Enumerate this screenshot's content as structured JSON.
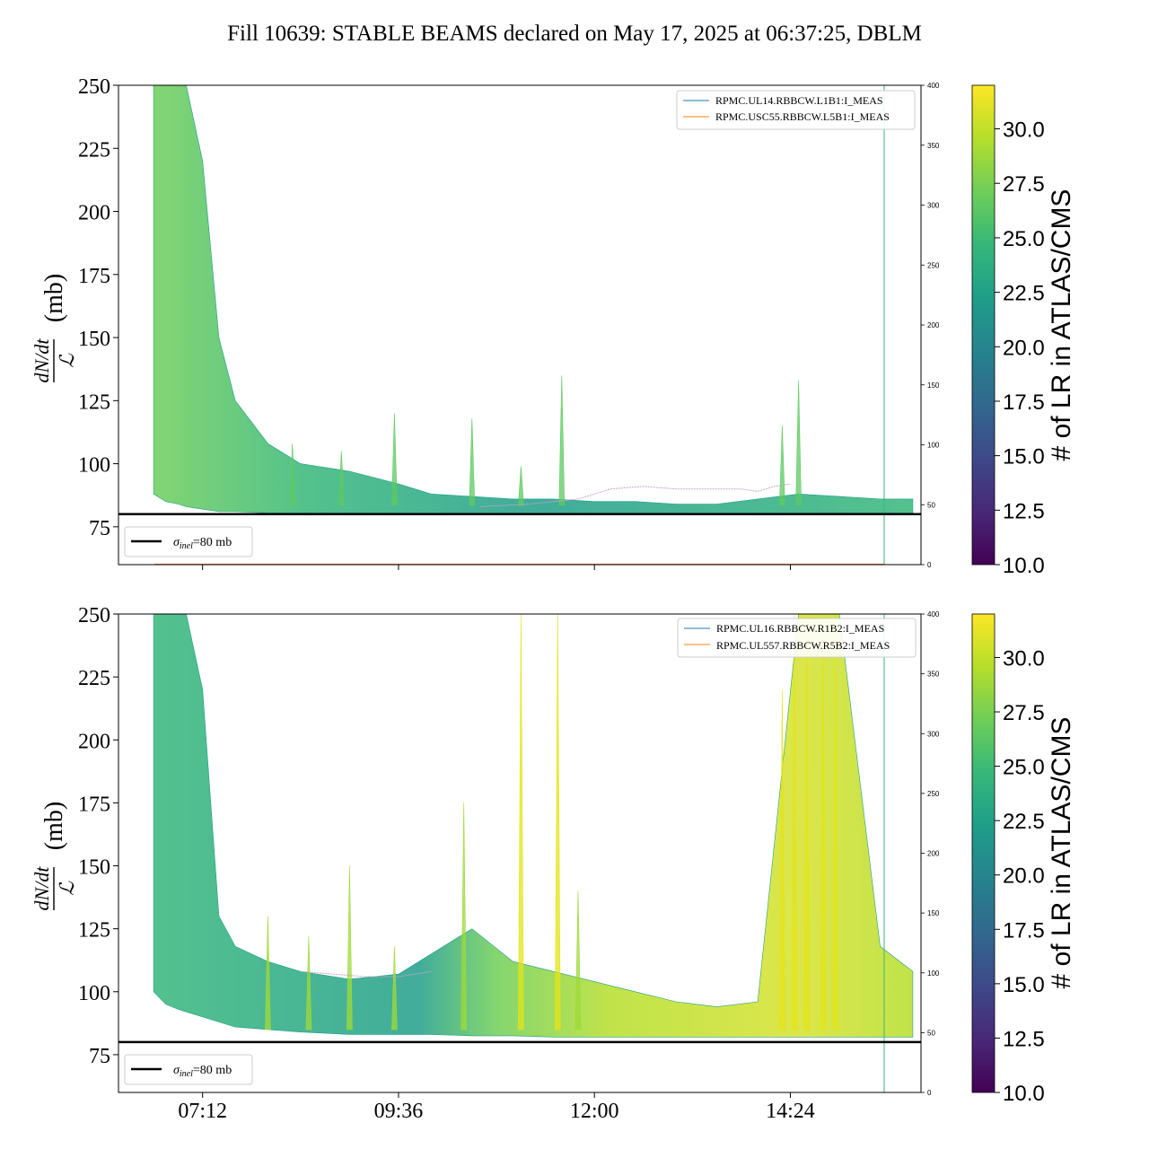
{
  "figure": {
    "title": "Fill 10639: STABLE BEAMS declared on May 17, 2025 at 06:37:25, DBLM",
    "ylabel_numerator": "dN/dt",
    "ylabel_denominator": "ℒ",
    "ylabel_unit": "(mb)",
    "colorbar_label": "# of LR in ATLAS/CMS",
    "sigma_label_symbol": "σ",
    "sigma_label_sub": "inel",
    "sigma_label_value": "=80 mb"
  },
  "chart_data": [
    {
      "type": "line",
      "panel": "top",
      "x_ticks": [
        "07:12",
        "09:36",
        "12:00",
        "14:24"
      ],
      "x_tick_values_hours": [
        7.2,
        9.6,
        12.0,
        14.4
      ],
      "xlim_hours": [
        6.17,
        16.0
      ],
      "y_ticks": [
        "75",
        "100",
        "125",
        "150",
        "175",
        "200",
        "225",
        "250"
      ],
      "ylim": [
        60,
        250
      ],
      "y2_ticks": [
        "0",
        "50",
        "100",
        "150",
        "200",
        "250",
        "300",
        "350",
        "400"
      ],
      "y2lim": [
        0,
        400
      ],
      "hline": {
        "y": 80,
        "label": "σinel=80 mb"
      },
      "legend": [
        "RPMC.UL14.RBBCW.L1B1:I_MEAS",
        "RPMC.USC55.RBBCW.L5B1:I_MEAS"
      ],
      "legend_colors": [
        "#1f77b4",
        "#ff7f0e"
      ],
      "envelope_hours": [
        6.6,
        6.75,
        6.9,
        7.0,
        7.2,
        7.4,
        7.6,
        8.0,
        8.4,
        9.0,
        9.6,
        10.0,
        10.5,
        11.0,
        11.5,
        12.0,
        12.5,
        13.0,
        13.5,
        14.0,
        14.5,
        15.0,
        15.5,
        15.9
      ],
      "envelope_upper": [
        250,
        250,
        250,
        250,
        220,
        150,
        125,
        108,
        100,
        97,
        92,
        88,
        87,
        86,
        86,
        85,
        85,
        84,
        84,
        86,
        88,
        87,
        86,
        86
      ],
      "envelope_lower": [
        88,
        85,
        84,
        83,
        82,
        81,
        81,
        80.5,
        80.5,
        80.5,
        80.5,
        80.5,
        80.5,
        80.5,
        80.5,
        80.5,
        80.5,
        80.5,
        80.5,
        80.5,
        80.5,
        80.5,
        80.5,
        80.5
      ],
      "spikes_hours": [
        8.3,
        8.9,
        9.55,
        10.5,
        11.1,
        11.6,
        14.3,
        14.5
      ],
      "spikes_values": [
        108,
        105,
        120,
        118,
        99,
        135,
        115,
        133
      ],
      "purple_trace_hours": [
        10.6,
        11.2,
        11.8,
        12.2,
        12.6,
        13.0,
        13.4,
        13.8,
        14.0,
        14.2,
        14.4
      ],
      "purple_trace_values": [
        83,
        84,
        86,
        90,
        91,
        90,
        90,
        90,
        89,
        91,
        92
      ]
    },
    {
      "type": "line",
      "panel": "bottom",
      "x_ticks": [
        "07:12",
        "09:36",
        "12:00",
        "14:24"
      ],
      "x_tick_values_hours": [
        7.2,
        9.6,
        12.0,
        14.4
      ],
      "xlim_hours": [
        6.17,
        16.0
      ],
      "y_ticks": [
        "75",
        "100",
        "125",
        "150",
        "175",
        "200",
        "225",
        "250"
      ],
      "ylim": [
        60,
        250
      ],
      "y2_ticks": [
        "0",
        "50",
        "100",
        "150",
        "200",
        "250",
        "300",
        "350",
        "400"
      ],
      "y2lim": [
        0,
        400
      ],
      "hline": {
        "y": 80,
        "label": "σinel=80 mb"
      },
      "legend": [
        "RPMC.UL16.RBBCW.R1B2:I_MEAS",
        "RPMC.UL557.RBBCW.R5B2:I_MEAS"
      ],
      "legend_colors": [
        "#1f77b4",
        "#ff7f0e"
      ],
      "envelope_hours": [
        6.6,
        6.75,
        6.9,
        7.0,
        7.2,
        7.4,
        7.6,
        8.0,
        8.4,
        9.0,
        9.6,
        10.0,
        10.5,
        11.0,
        11.5,
        12.0,
        12.5,
        13.0,
        13.5,
        14.0,
        14.5,
        15.0,
        15.5,
        15.9
      ],
      "envelope_upper": [
        250,
        250,
        250,
        250,
        220,
        130,
        118,
        112,
        108,
        105,
        107,
        115,
        125,
        112,
        108,
        104,
        100,
        96,
        94,
        96,
        250,
        250,
        118,
        108
      ],
      "envelope_lower": [
        100,
        95,
        93,
        92,
        90,
        88,
        86,
        85,
        84,
        83,
        83,
        83,
        82.5,
        82.5,
        82,
        82,
        82,
        82,
        82,
        82,
        82,
        82,
        82,
        82
      ],
      "spikes_hours": [
        8.0,
        8.5,
        9.0,
        9.55,
        10.4,
        11.1,
        11.55,
        11.8,
        14.3,
        14.45,
        14.6,
        14.8,
        14.95
      ],
      "spikes_values": [
        130,
        122,
        150,
        118,
        175,
        250,
        250,
        140,
        220,
        250,
        250,
        250,
        250
      ],
      "purple_trace_hours": [
        8.4,
        8.8,
        9.2,
        9.6,
        10.0
      ],
      "purple_trace_values": [
        108,
        107,
        106,
        106,
        108
      ]
    }
  ],
  "colorbar": {
    "ticks": [
      "10.0",
      "12.5",
      "15.0",
      "17.5",
      "20.0",
      "22.5",
      "25.0",
      "27.5",
      "30.0"
    ],
    "tick_values": [
      10.0,
      12.5,
      15.0,
      17.5,
      20.0,
      22.5,
      25.0,
      27.5,
      30.0
    ],
    "range": [
      10.0,
      32.0
    ],
    "colormap": "viridis",
    "stops": [
      "#440154",
      "#482878",
      "#3e4989",
      "#31688e",
      "#26828e",
      "#1f9e89",
      "#35b779",
      "#6ece58",
      "#b5de2b",
      "#fde725"
    ]
  }
}
